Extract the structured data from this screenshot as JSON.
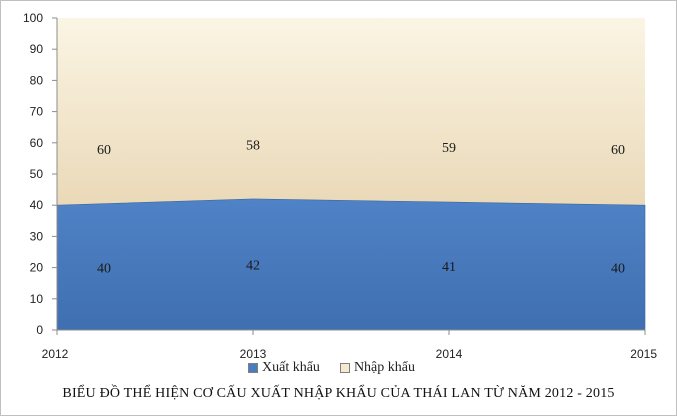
{
  "chart_data": {
    "type": "area",
    "stacked": true,
    "x": [
      "2012",
      "2013",
      "2014",
      "2015"
    ],
    "series": [
      {
        "name": "Xuất khẩu",
        "values": [
          40,
          42,
          41,
          40
        ],
        "color": "#4a7cc0"
      },
      {
        "name": "Nhập khẩu",
        "values": [
          60,
          58,
          59,
          60
        ],
        "color": "#f5e9cf"
      }
    ],
    "ylim": [
      0,
      100
    ],
    "yticks": [
      "0",
      "10",
      "20",
      "30",
      "40",
      "50",
      "60",
      "70",
      "80",
      "90",
      "100"
    ],
    "legend_position": "bottom",
    "grid": false,
    "caption": "BIỂU ĐỒ THỂ HIỆN CƠ CẤU XUẤT NHẬP KHẨU CỦA THÁI LAN TỪ NĂM 2012 - 2015"
  }
}
